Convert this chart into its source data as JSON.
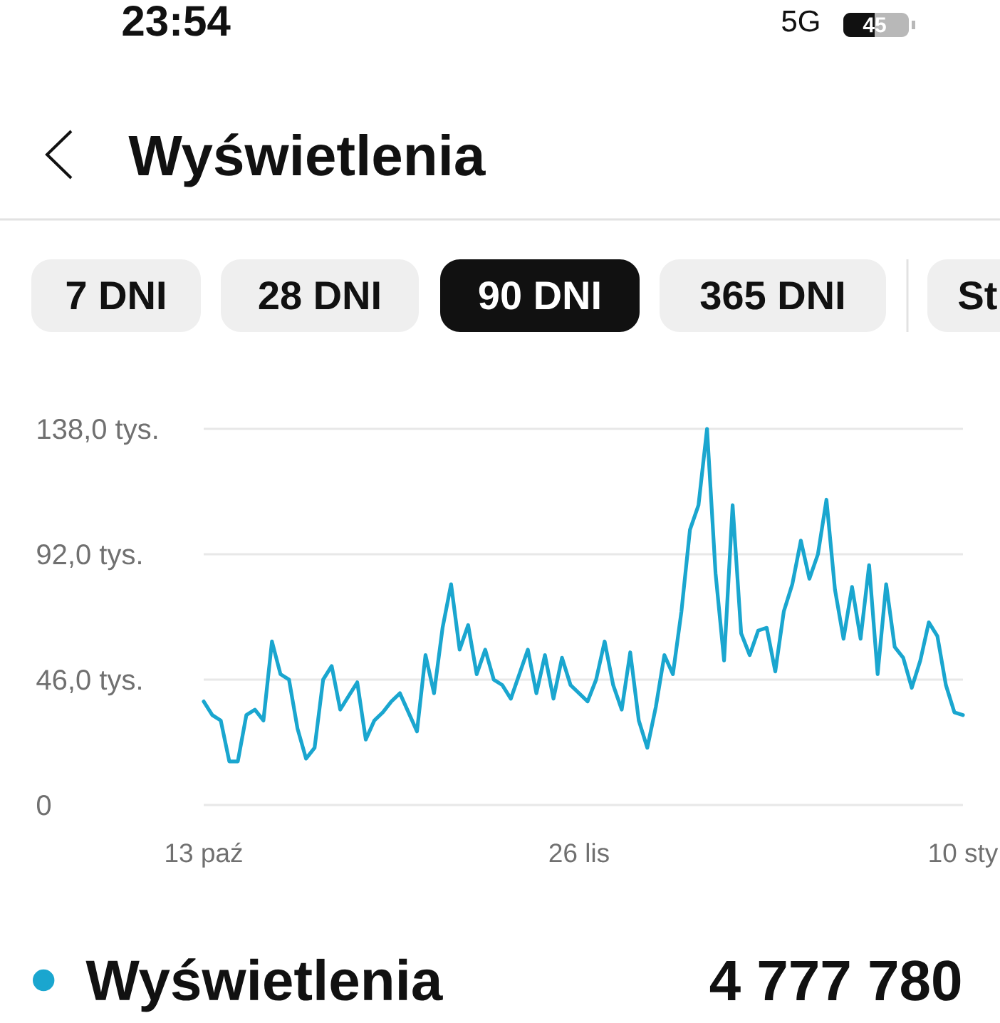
{
  "chart_data": {
    "type": "line",
    "title": "Wyświetlenia",
    "categories": [
      "13 paź",
      null,
      null,
      null,
      null,
      null,
      null,
      null,
      null,
      null,
      null,
      null,
      null,
      null,
      null,
      null,
      null,
      null,
      null,
      null,
      null,
      null,
      null,
      null,
      null,
      null,
      null,
      null,
      null,
      null,
      null,
      null,
      null,
      null,
      null,
      null,
      null,
      null,
      null,
      null,
      null,
      null,
      null,
      null,
      "26 lis",
      null,
      null,
      null,
      null,
      null,
      null,
      null,
      null,
      null,
      null,
      null,
      null,
      null,
      null,
      null,
      null,
      null,
      null,
      null,
      null,
      null,
      null,
      null,
      null,
      null,
      null,
      null,
      null,
      null,
      null,
      null,
      null,
      null,
      null,
      null,
      null,
      null,
      null,
      null,
      null,
      null,
      null,
      null,
      null,
      "10 sty"
    ],
    "series": [
      {
        "name": "Wyświetlenia",
        "color": "#1aa6cf",
        "values": [
          38,
          33,
          31,
          16,
          16,
          33,
          35,
          31,
          60,
          48,
          46,
          28,
          17,
          21,
          46,
          51,
          35,
          40,
          45,
          24,
          31,
          34,
          38,
          41,
          34,
          27,
          55,
          41,
          65,
          81,
          57,
          66,
          48,
          57,
          46,
          44,
          39,
          48,
          57,
          41,
          55,
          39,
          54,
          44,
          41,
          38,
          46,
          60,
          44,
          35,
          56,
          31,
          21,
          36,
          55,
          48,
          71,
          101,
          110,
          138,
          85,
          53,
          110,
          63,
          55,
          64,
          65,
          49,
          71,
          81,
          97,
          83,
          92,
          112,
          79,
          61,
          80,
          61,
          88,
          48,
          81,
          58,
          54,
          43,
          53,
          67,
          62,
          44,
          34,
          33
        ]
      }
    ],
    "ylim": [
      0,
      138
    ],
    "yticks": [
      0,
      {
        "value": 46,
        "label": "46,0 tys."
      },
      {
        "value": 92,
        "label": "92,0 tys."
      },
      {
        "value": 138,
        "label": "138,0 tys."
      }
    ],
    "grid": "y",
    "legend": "bottom",
    "annotations": [
      "23:54",
      "5G",
      "45",
      "7 DNI",
      "28 DNI",
      "90 DNI",
      "365 DNI",
      "St",
      "4 777 780"
    ]
  }
}
